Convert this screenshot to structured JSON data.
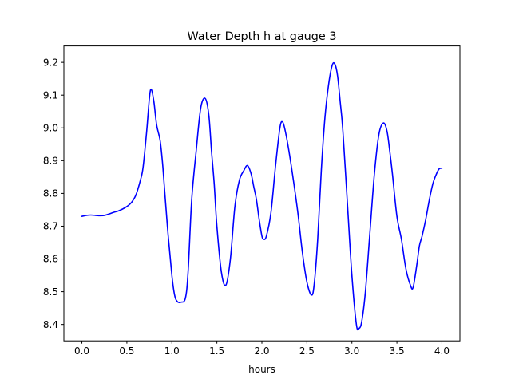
{
  "chart_data": {
    "type": "line",
    "title": "Water Depth h at gauge 3",
    "xlabel": "hours",
    "ylabel": "",
    "xlim": [
      -0.2,
      4.2
    ],
    "ylim": [
      8.35,
      9.25
    ],
    "xticks": [
      0.0,
      0.5,
      1.0,
      1.5,
      2.0,
      2.5,
      3.0,
      3.5,
      4.0
    ],
    "xtick_labels": [
      "0.0",
      "0.5",
      "1.0",
      "1.5",
      "2.0",
      "2.5",
      "3.0",
      "3.5",
      "4.0"
    ],
    "yticks": [
      8.4,
      8.5,
      8.6,
      8.7,
      8.8,
      8.9,
      9.0,
      9.1,
      9.2
    ],
    "ytick_labels": [
      "8.4",
      "8.5",
      "8.6",
      "8.7",
      "8.8",
      "8.9",
      "9.0",
      "9.1",
      "9.2"
    ],
    "grid": false,
    "series": [
      {
        "color": "#0000ff",
        "x": [
          0.0,
          0.05,
          0.1,
          0.15,
          0.2,
          0.25,
          0.3,
          0.35,
          0.4,
          0.45,
          0.5,
          0.55,
          0.6,
          0.65,
          0.68,
          0.72,
          0.75,
          0.77,
          0.8,
          0.83,
          0.87,
          0.9,
          0.95,
          1.0,
          1.03,
          1.06,
          1.1,
          1.15,
          1.18,
          1.22,
          1.27,
          1.32,
          1.37,
          1.41,
          1.44,
          1.47,
          1.5,
          1.55,
          1.6,
          1.65,
          1.7,
          1.75,
          1.8,
          1.84,
          1.88,
          1.91,
          1.94,
          1.97,
          2.0,
          2.02,
          2.05,
          2.1,
          2.15,
          2.2,
          2.23,
          2.26,
          2.3,
          2.35,
          2.4,
          2.45,
          2.5,
          2.55,
          2.58,
          2.62,
          2.66,
          2.7,
          2.74,
          2.78,
          2.81,
          2.84,
          2.87,
          2.9,
          2.95,
          3.0,
          3.05,
          3.08,
          3.11,
          3.15,
          3.2,
          3.25,
          3.3,
          3.35,
          3.39,
          3.42,
          3.45,
          3.5,
          3.55,
          3.6,
          3.65,
          3.68,
          3.72,
          3.75,
          3.78,
          3.82,
          3.86,
          3.9,
          3.94,
          3.97,
          4.0
        ],
        "y": [
          8.73,
          8.733,
          8.734,
          8.733,
          8.732,
          8.733,
          8.737,
          8.742,
          8.746,
          8.752,
          8.76,
          8.772,
          8.795,
          8.84,
          8.88,
          8.99,
          9.09,
          9.118,
          9.08,
          9.01,
          8.96,
          8.88,
          8.7,
          8.55,
          8.49,
          8.47,
          8.468,
          8.48,
          8.56,
          8.78,
          8.93,
          9.06,
          9.09,
          9.04,
          8.93,
          8.83,
          8.7,
          8.56,
          8.52,
          8.6,
          8.76,
          8.84,
          8.87,
          8.885,
          8.86,
          8.82,
          8.78,
          8.72,
          8.67,
          8.66,
          8.67,
          8.74,
          8.88,
          9.0,
          9.018,
          8.99,
          8.93,
          8.84,
          8.74,
          8.62,
          8.53,
          8.49,
          8.52,
          8.66,
          8.87,
          9.03,
          9.13,
          9.19,
          9.195,
          9.16,
          9.08,
          8.99,
          8.77,
          8.55,
          8.4,
          8.388,
          8.41,
          8.5,
          8.68,
          8.86,
          8.98,
          9.015,
          8.99,
          8.93,
          8.86,
          8.73,
          8.66,
          8.57,
          8.52,
          8.513,
          8.58,
          8.64,
          8.67,
          8.72,
          8.78,
          8.83,
          8.86,
          8.875,
          8.877
        ]
      }
    ]
  }
}
